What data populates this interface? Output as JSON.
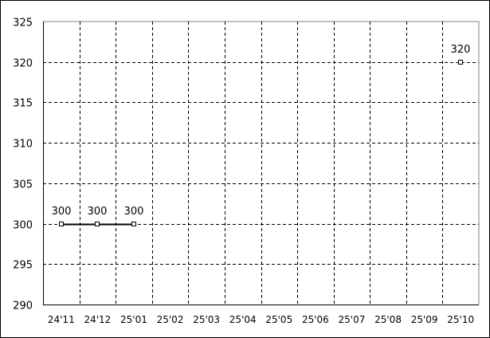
{
  "chart_data": {
    "type": "line",
    "categories": [
      "24'11",
      "24'12",
      "25'01",
      "25'02",
      "25'03",
      "25'04",
      "25'05",
      "25'06",
      "25'07",
      "25'08",
      "25'09",
      "25'10"
    ],
    "series": [
      {
        "values": [
          300,
          300,
          300,
          null,
          null,
          null,
          null,
          null,
          null,
          null,
          null,
          320
        ],
        "color": "#000000"
      }
    ],
    "data_labels": [
      "300",
      "300",
      "300",
      "",
      "",
      "",
      "",
      "",
      "",
      "",
      "",
      "320"
    ],
    "yticks": [
      290,
      295,
      300,
      305,
      310,
      315,
      320,
      325
    ],
    "ylim": [
      290,
      325
    ],
    "grid": true,
    "grid_style": "dashed",
    "title": "",
    "xlabel": "",
    "ylabel": ""
  }
}
